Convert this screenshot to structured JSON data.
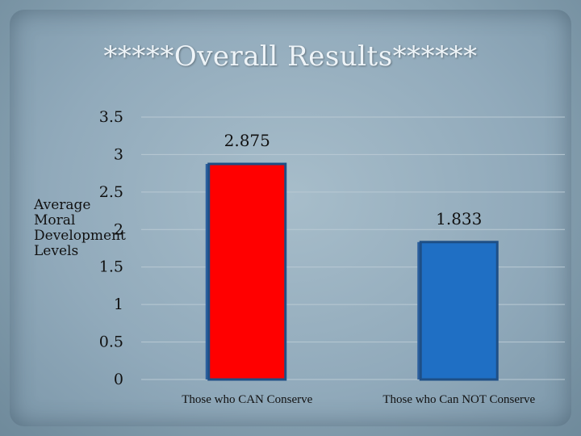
{
  "chart_data": {
    "type": "bar",
    "title": "*****Overall Results******",
    "ylabel": [
      "Average",
      "Moral",
      "Development",
      "Levels"
    ],
    "categories": [
      "Those who CAN Conserve",
      "Those who Can NOT Conserve"
    ],
    "values": [
      2.875,
      1.833
    ],
    "data_labels": [
      "2.875",
      "1.833"
    ],
    "colors": [
      "#ff0000",
      "#1f6fc4"
    ],
    "yticks": [
      "0",
      "0.5",
      "1",
      "1.5",
      "2",
      "2.5",
      "3",
      "3.5"
    ],
    "ylim": [
      0,
      3.5
    ],
    "grid": true
  }
}
